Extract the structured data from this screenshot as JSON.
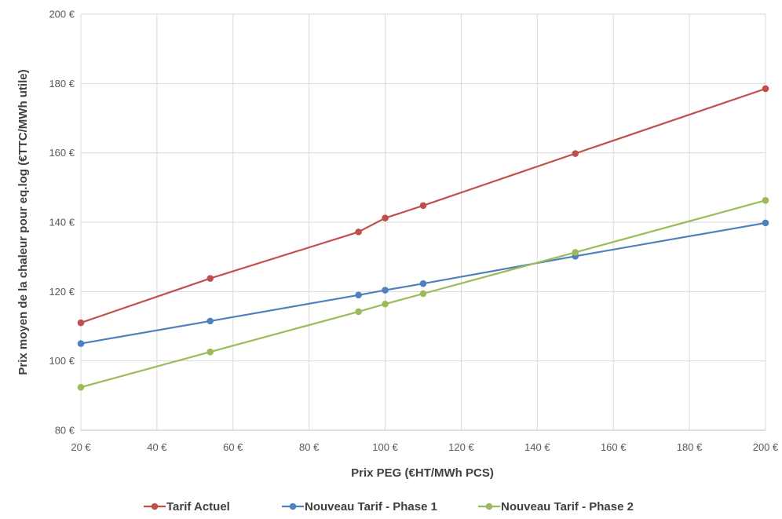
{
  "chart_data": {
    "type": "line",
    "title": "",
    "xlabel": "Prix PEG (€HT/MWh PCS)",
    "ylabel": "Prix moyen de la chaleur pour eq.log  (€TTC/MWh utile)",
    "xlim": [
      20,
      200
    ],
    "ylim": [
      80,
      200
    ],
    "x_ticks": [
      20,
      40,
      60,
      80,
      100,
      120,
      140,
      160,
      180,
      200
    ],
    "y_ticks": [
      80,
      100,
      120,
      140,
      160,
      180,
      200
    ],
    "x_tick_labels": [
      "20 €",
      "40 €",
      "60 €",
      "80 €",
      "100 €",
      "120 €",
      "140 €",
      "160 €",
      "180 €",
      "200 €"
    ],
    "y_tick_labels": [
      "80 €",
      "100 €",
      "120 €",
      "140 €",
      "160 €",
      "180 €",
      "200 €"
    ],
    "grid": true,
    "legend_position": "bottom",
    "series": [
      {
        "name": "Tarif Actuel",
        "color": "#c0504d",
        "x": [
          20,
          54,
          93,
          100,
          110,
          150,
          200
        ],
        "y": [
          111.0,
          123.8,
          137.2,
          141.2,
          144.8,
          159.8,
          178.5
        ]
      },
      {
        "name": "Nouveau Tarif - Phase 1",
        "color": "#4f81bd",
        "x": [
          20,
          54,
          93,
          100,
          110,
          150,
          200
        ],
        "y": [
          105.0,
          111.5,
          119.0,
          120.4,
          122.3,
          130.2,
          139.8
        ]
      },
      {
        "name": "Nouveau Tarif - Phase 2",
        "color": "#9bbb59",
        "x": [
          20,
          54,
          93,
          100,
          110,
          150,
          200
        ],
        "y": [
          92.4,
          102.6,
          114.2,
          116.4,
          119.4,
          131.3,
          146.3
        ]
      }
    ]
  }
}
